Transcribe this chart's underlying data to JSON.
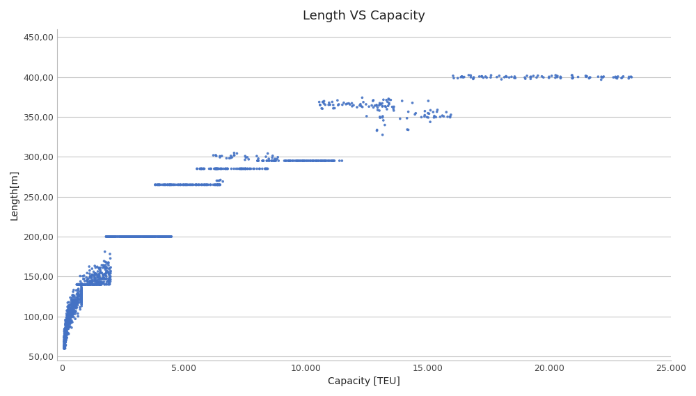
{
  "title": "Length VS Capacity",
  "xlabel": "Capacity [TEU]",
  "ylabel": "Length[m]",
  "xlim": [
    -200,
    25000
  ],
  "ylim": [
    45,
    460
  ],
  "xticks": [
    0,
    5000,
    10000,
    15000,
    20000,
    25000
  ],
  "yticks": [
    50,
    100,
    150,
    200,
    250,
    300,
    350,
    400,
    450
  ],
  "dot_color": "#4472C4",
  "dot_size": 7,
  "background_color": "#FFFFFF",
  "plot_bg_color": "#FFFFFF",
  "grid_color": "#C8C8C8",
  "title_fontsize": 13,
  "label_fontsize": 10,
  "tick_fontsize": 9,
  "seed": 42
}
